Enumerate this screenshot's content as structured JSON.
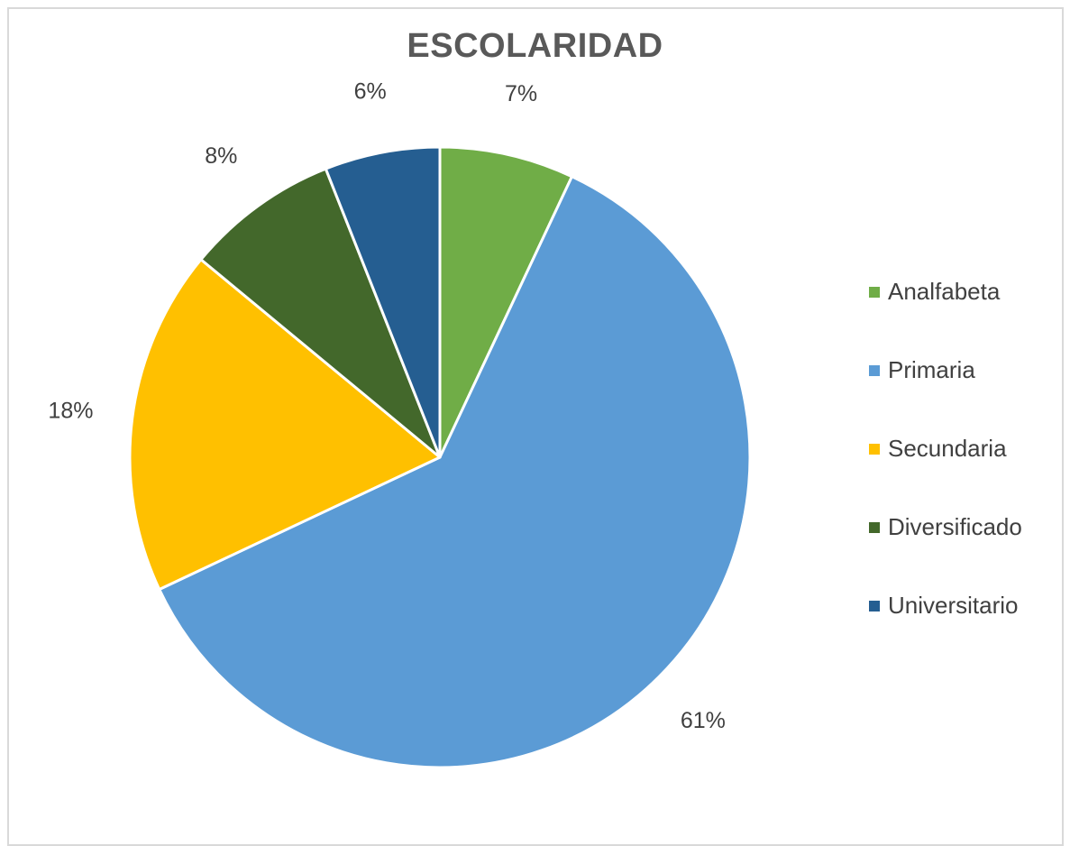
{
  "chart_data": {
    "type": "pie",
    "title": "ESCOLARIDAD",
    "legend_position": "right",
    "slices": [
      {
        "name": "Analfabeta",
        "value": 7,
        "label": "7%",
        "color": "#70ad47"
      },
      {
        "name": "Primaria",
        "value": 61,
        "label": "61%",
        "color": "#5b9bd5"
      },
      {
        "name": "Secundaria",
        "value": 18,
        "label": "18%",
        "color": "#ffc000"
      },
      {
        "name": "Diversificado",
        "value": 8,
        "label": "8%",
        "color": "#43682b"
      },
      {
        "name": "Universitario",
        "value": 6,
        "label": "6%",
        "color": "#255e91"
      }
    ]
  }
}
